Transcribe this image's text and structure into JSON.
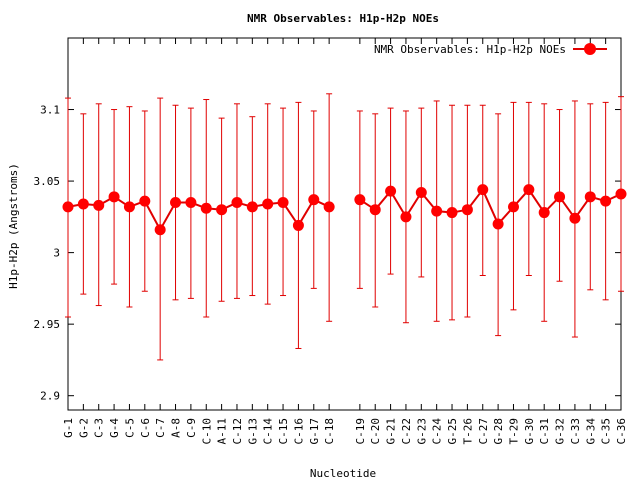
{
  "chart_data": {
    "type": "line",
    "title": "NMR Observables: H1p-H2p NOEs",
    "xlabel": "Nucleotide",
    "ylabel": "H1p-H2p (Angstroms)",
    "ylim": [
      2.89,
      3.15
    ],
    "yticks": [
      "2.9",
      "2.95",
      "3",
      "3.05",
      "3.1"
    ],
    "grid": false,
    "legend_position": "top-right",
    "series": [
      {
        "name": "NMR Observables: H1p-H2p NOEs",
        "color": "#e00000",
        "segments": [
          {
            "labels": [
              "G-1",
              "G-2",
              "C-3",
              "G-4",
              "C-5",
              "C-6",
              "C-7",
              "A-8",
              "C-9",
              "C-10",
              "A-11",
              "C-12",
              "G-13",
              "C-14",
              "C-15",
              "C-16",
              "G-17",
              "C-18"
            ],
            "y": [
              3.032,
              3.034,
              3.033,
              3.039,
              3.032,
              3.036,
              3.016,
              3.035,
              3.035,
              3.031,
              3.03,
              3.035,
              3.032,
              3.034,
              3.035,
              3.019,
              3.037,
              3.032
            ],
            "y_low": [
              2.955,
              2.971,
              2.963,
              2.978,
              2.962,
              2.973,
              2.925,
              2.967,
              2.968,
              2.955,
              2.966,
              2.968,
              2.97,
              2.964,
              2.97,
              2.933,
              2.975,
              2.952
            ],
            "y_high": [
              3.108,
              3.097,
              3.104,
              3.1,
              3.102,
              3.099,
              3.108,
              3.103,
              3.101,
              3.107,
              3.094,
              3.104,
              3.095,
              3.104,
              3.101,
              3.105,
              3.099,
              3.111
            ]
          },
          {
            "labels": [
              "C-19",
              "C-20",
              "G-21",
              "C-22",
              "G-23",
              "C-24",
              "G-25",
              "T-26",
              "C-27",
              "G-28",
              "T-29",
              "G-30",
              "C-31",
              "G-32",
              "C-33",
              "G-34",
              "C-35",
              "C-36"
            ],
            "y": [
              3.037,
              3.03,
              3.043,
              3.025,
              3.042,
              3.029,
              3.028,
              3.03,
              3.044,
              3.02,
              3.032,
              3.044,
              3.028,
              3.039,
              3.024,
              3.039,
              3.036,
              3.041
            ],
            "y_low": [
              2.975,
              2.962,
              2.985,
              2.951,
              2.983,
              2.952,
              2.953,
              2.955,
              2.984,
              2.942,
              2.96,
              2.984,
              2.952,
              2.98,
              2.941,
              2.974,
              2.967,
              2.973
            ],
            "y_high": [
              3.099,
              3.097,
              3.101,
              3.099,
              3.101,
              3.106,
              3.103,
              3.103,
              3.103,
              3.097,
              3.105,
              3.105,
              3.104,
              3.1,
              3.106,
              3.104,
              3.105,
              3.109
            ]
          }
        ]
      }
    ]
  }
}
